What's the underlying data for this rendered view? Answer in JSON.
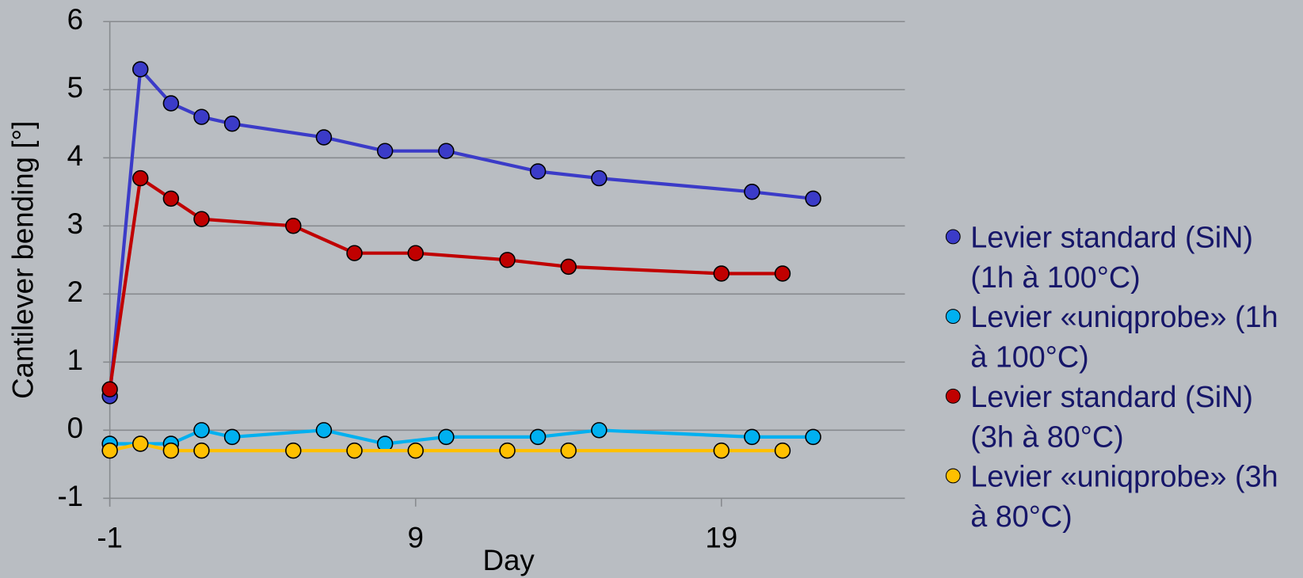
{
  "chart_data": {
    "type": "line",
    "x_label": "Day",
    "y_label": "Cantilever bending [°]",
    "xlim": [
      -1,
      25
    ],
    "xticks": [
      -1,
      9,
      19
    ],
    "ylim": [
      -1,
      6
    ],
    "yticks": [
      -1,
      0,
      1,
      2,
      3,
      4,
      5,
      6
    ],
    "grid": true,
    "legend": "right",
    "series": [
      {
        "name": "Levier standard (SiN) (1h à 100°C)",
        "color": "#3b3bc8",
        "x": [
          -1,
          0,
          1,
          2,
          3,
          6,
          8,
          10,
          13,
          15,
          20,
          22
        ],
        "values": [
          0.5,
          5.3,
          4.8,
          4.6,
          4.5,
          4.3,
          4.1,
          4.1,
          3.8,
          3.7,
          3.5,
          3.4
        ]
      },
      {
        "name": "Levier «uniqprobe» (1h à 100°C)",
        "color": "#00b0f0",
        "x": [
          -1,
          1,
          2,
          3,
          6,
          8,
          10,
          13,
          15,
          20,
          22
        ],
        "values": [
          -0.2,
          -0.2,
          0,
          -0.1,
          0,
          -0.2,
          -0.1,
          -0.1,
          0,
          -0.1,
          -0.1
        ]
      },
      {
        "name": "Levier standard (SiN) (3h à 80°C)",
        "color": "#c00000",
        "x": [
          -1,
          0,
          1,
          2,
          5,
          7,
          9,
          12,
          14,
          19,
          21
        ],
        "values": [
          0.6,
          3.7,
          3.4,
          3.1,
          3.0,
          2.6,
          2.6,
          2.5,
          2.4,
          2.3,
          2.3
        ]
      },
      {
        "name": "Levier «uniqprobe» (3h à 80°C)",
        "color": "#ffc000",
        "x": [
          -1,
          0,
          1,
          2,
          5,
          7,
          9,
          12,
          14,
          19,
          21
        ],
        "values": [
          -0.3,
          -0.2,
          -0.3,
          -0.3,
          -0.3,
          -0.3,
          -0.3,
          -0.3,
          -0.3,
          -0.3,
          -0.3
        ]
      }
    ]
  }
}
